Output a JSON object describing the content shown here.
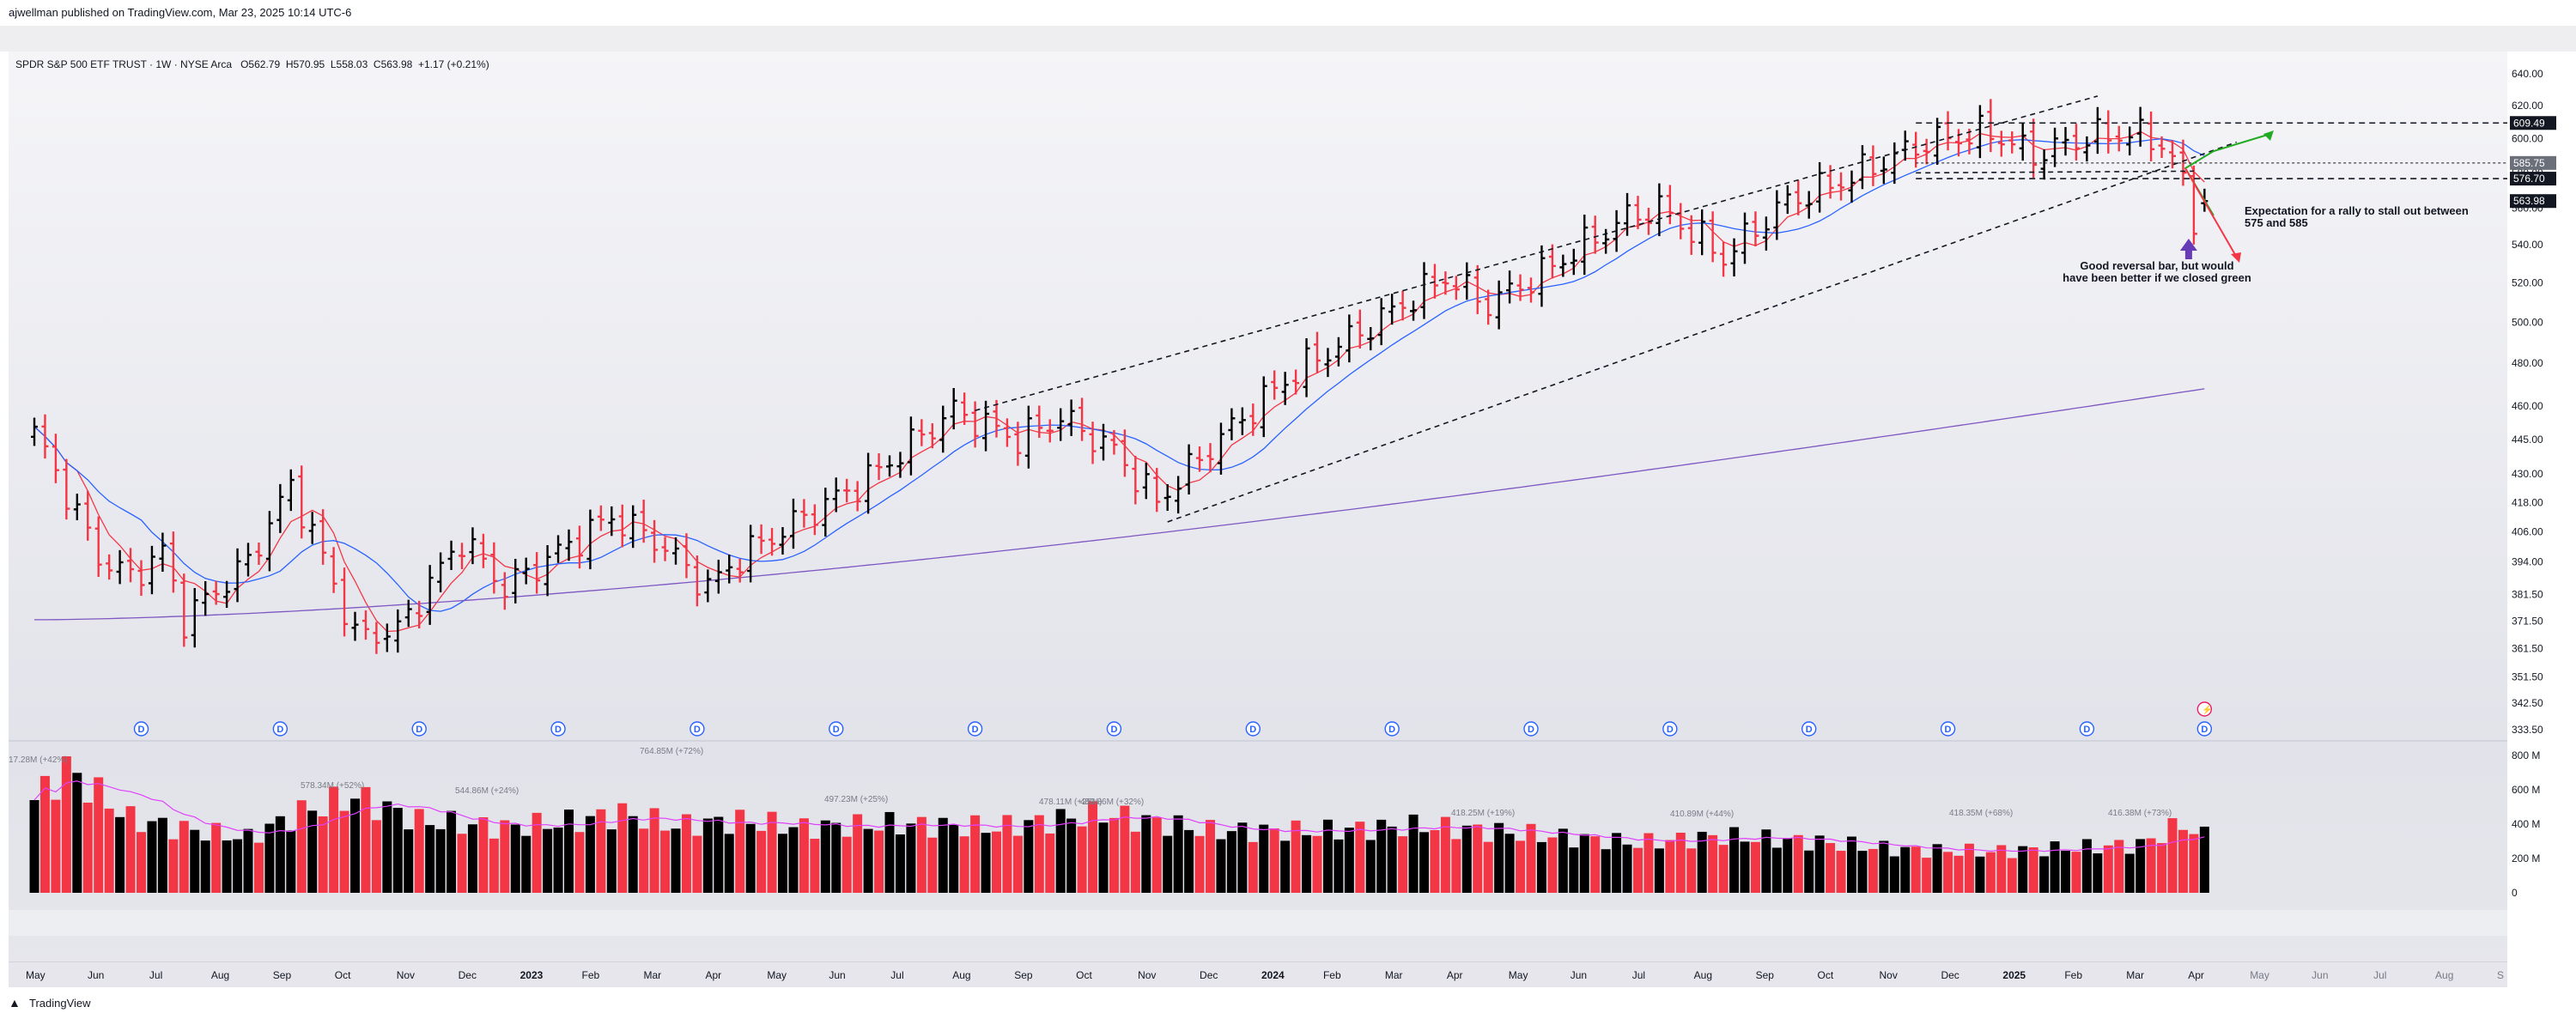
{
  "header": {
    "published_line": "ajwellman published on TradingView.com, Mar 23, 2025 10:14 UTC-6"
  },
  "legend": {
    "symbol_line": "SPDR S&P 500 ETF TRUST · 1W · NYSE Arca",
    "open": "O562.79",
    "high": "H570.95",
    "low": "L558.03",
    "close": "C563.98",
    "change": "+1.17 (+0.21%)"
  },
  "annotations": {
    "reversal_line1": "Good reversal bar, but would",
    "reversal_line2": "have been better if we closed green",
    "expectation_line1": "Expectation for a rally to stall out between",
    "expectation_line2": "575 and 585"
  },
  "footer": {
    "brand": "TradingView",
    "logo": "tradingview-logo-icon"
  },
  "colors": {
    "up": "#000000",
    "down": "#f23645",
    "ma_red": "#f23645",
    "ma_blue": "#2962ff",
    "ma_purple": "#7e57c2",
    "volume_ma": "#e040fb",
    "arrow_up": "#22ab22",
    "arrow_down": "#f23645",
    "reversal_arrow": "#673ab7",
    "price_badge": "#131722"
  },
  "chart_data": [
    {
      "type": "ohlc",
      "title": "SPDR S&P 500 ETF TRUST · 1W · NYSE Arca",
      "scale": "log",
      "ylim": [
        333.5,
        640
      ],
      "y_ticks": [
        "640.00",
        "620.00",
        "600.00",
        "580.00",
        "560.00",
        "540.00",
        "520.00",
        "500.00",
        "480.00",
        "460.00",
        "445.00",
        "430.00",
        "418.00",
        "406.00",
        "394.00",
        "381.50",
        "371.50",
        "361.50",
        "351.50",
        "342.50",
        "333.50"
      ],
      "x_ticks": [
        "May",
        "Jun",
        "Jul",
        "Aug",
        "Sep",
        "Oct",
        "Nov",
        "Dec",
        "2023",
        "Feb",
        "Mar",
        "Apr",
        "May",
        "Jun",
        "Jul",
        "Aug",
        "Sep",
        "Oct",
        "Nov",
        "Dec",
        "2024",
        "Feb",
        "Mar",
        "Apr",
        "May",
        "Jun",
        "Jul",
        "Aug",
        "Sep",
        "Oct",
        "Nov",
        "Dec",
        "2025",
        "Feb",
        "Mar",
        "Apr",
        "May",
        "Jun",
        "Jul",
        "Aug",
        "S"
      ],
      "close_anchors": [
        {
          "week": 0,
          "close": 448
        },
        {
          "week": 6,
          "close": 396
        },
        {
          "week": 9,
          "close": 388
        },
        {
          "week": 12,
          "close": 398
        },
        {
          "week": 14,
          "close": 372
        },
        {
          "week": 20,
          "close": 394
        },
        {
          "week": 24,
          "close": 425
        },
        {
          "week": 30,
          "close": 366
        },
        {
          "week": 34,
          "close": 368
        },
        {
          "week": 40,
          "close": 403
        },
        {
          "week": 44,
          "close": 384
        },
        {
          "week": 48,
          "close": 395
        },
        {
          "week": 54,
          "close": 412
        },
        {
          "week": 58,
          "close": 403
        },
        {
          "week": 63,
          "close": 384
        },
        {
          "week": 66,
          "close": 396
        },
        {
          "week": 72,
          "close": 412
        },
        {
          "week": 78,
          "close": 428
        },
        {
          "week": 86,
          "close": 458
        },
        {
          "week": 92,
          "close": 445
        },
        {
          "week": 96,
          "close": 455
        },
        {
          "week": 101,
          "close": 440
        },
        {
          "week": 105,
          "close": 418
        },
        {
          "week": 111,
          "close": 446
        },
        {
          "week": 118,
          "close": 476
        },
        {
          "week": 124,
          "close": 495
        },
        {
          "week": 132,
          "close": 523
        },
        {
          "week": 136,
          "close": 509
        },
        {
          "week": 141,
          "close": 525
        },
        {
          "week": 149,
          "close": 555
        },
        {
          "week": 152,
          "close": 560
        },
        {
          "week": 156,
          "close": 543
        },
        {
          "week": 158,
          "close": 533
        },
        {
          "week": 164,
          "close": 564
        },
        {
          "week": 169,
          "close": 575
        },
        {
          "week": 177,
          "close": 598
        },
        {
          "week": 183,
          "close": 604
        },
        {
          "week": 187,
          "close": 590
        },
        {
          "week": 192,
          "close": 601
        },
        {
          "week": 196,
          "close": 603
        },
        {
          "week": 199,
          "close": 598
        },
        {
          "week": 201,
          "close": 575
        },
        {
          "week": 202,
          "close": 551
        },
        {
          "week": 203,
          "close": 563.98
        }
      ],
      "last_bar": {
        "open": 562.79,
        "high": 570.95,
        "low": 558.03,
        "close": 563.98,
        "change": 1.17,
        "change_pct": 0.21
      },
      "price_labels": [
        "609.49",
        "585.75",
        "576.70",
        "563.98"
      ],
      "horizontal_levels": [
        609.49,
        585.75,
        576.7
      ],
      "moving_averages": [
        {
          "color": "#f23645",
          "period_weeks": 5
        },
        {
          "color": "#2962ff",
          "period_weeks": 11
        },
        {
          "color": "#7e57c2",
          "period_weeks": 40
        }
      ],
      "dividend_marker_label": "D",
      "dividend_weeks": [
        10,
        23,
        36,
        49,
        62,
        75,
        88,
        101,
        114,
        127,
        140,
        153,
        166,
        179,
        192,
        203
      ],
      "grid": false
    },
    {
      "type": "bar",
      "title": "Volume",
      "ylim": [
        0,
        800
      ],
      "unit": "M",
      "y_ticks": [
        "800 M",
        "600 M",
        "400 M",
        "200 M",
        "0"
      ],
      "peak_labels": [
        "17.28M (+42%)",
        "578.34M (+52%)",
        "544.86M (+24%)",
        "764.85M (+72%)",
        "497.23M (+25%)",
        "478.11M (+25%)",
        "489.86M (+32%)",
        "418.25M (+19%)",
        "410.89M (+44%)",
        "418.35M (+68%)",
        "416.38M (+73%)"
      ],
      "volume_anchors": [
        {
          "week": 0,
          "value": 540
        },
        {
          "week": 3,
          "value": 720
        },
        {
          "week": 9,
          "value": 430
        },
        {
          "week": 13,
          "value": 380
        },
        {
          "week": 20,
          "value": 320
        },
        {
          "week": 25,
          "value": 470
        },
        {
          "week": 30,
          "value": 560
        },
        {
          "week": 36,
          "value": 420
        },
        {
          "week": 44,
          "value": 380
        },
        {
          "week": 51,
          "value": 420
        },
        {
          "week": 55,
          "value": 460
        },
        {
          "week": 60,
          "value": 390
        },
        {
          "week": 66,
          "value": 420
        },
        {
          "week": 72,
          "value": 380
        },
        {
          "week": 80,
          "value": 400
        },
        {
          "week": 90,
          "value": 380
        },
        {
          "week": 100,
          "value": 460
        },
        {
          "week": 110,
          "value": 360
        },
        {
          "week": 120,
          "value": 360
        },
        {
          "week": 130,
          "value": 390
        },
        {
          "week": 140,
          "value": 340
        },
        {
          "week": 150,
          "value": 290
        },
        {
          "week": 158,
          "value": 330
        },
        {
          "week": 166,
          "value": 300
        },
        {
          "week": 175,
          "value": 250
        },
        {
          "week": 183,
          "value": 240
        },
        {
          "week": 190,
          "value": 260
        },
        {
          "week": 197,
          "value": 280
        },
        {
          "week": 201,
          "value": 400
        },
        {
          "week": 203,
          "value": 330
        }
      ]
    }
  ]
}
